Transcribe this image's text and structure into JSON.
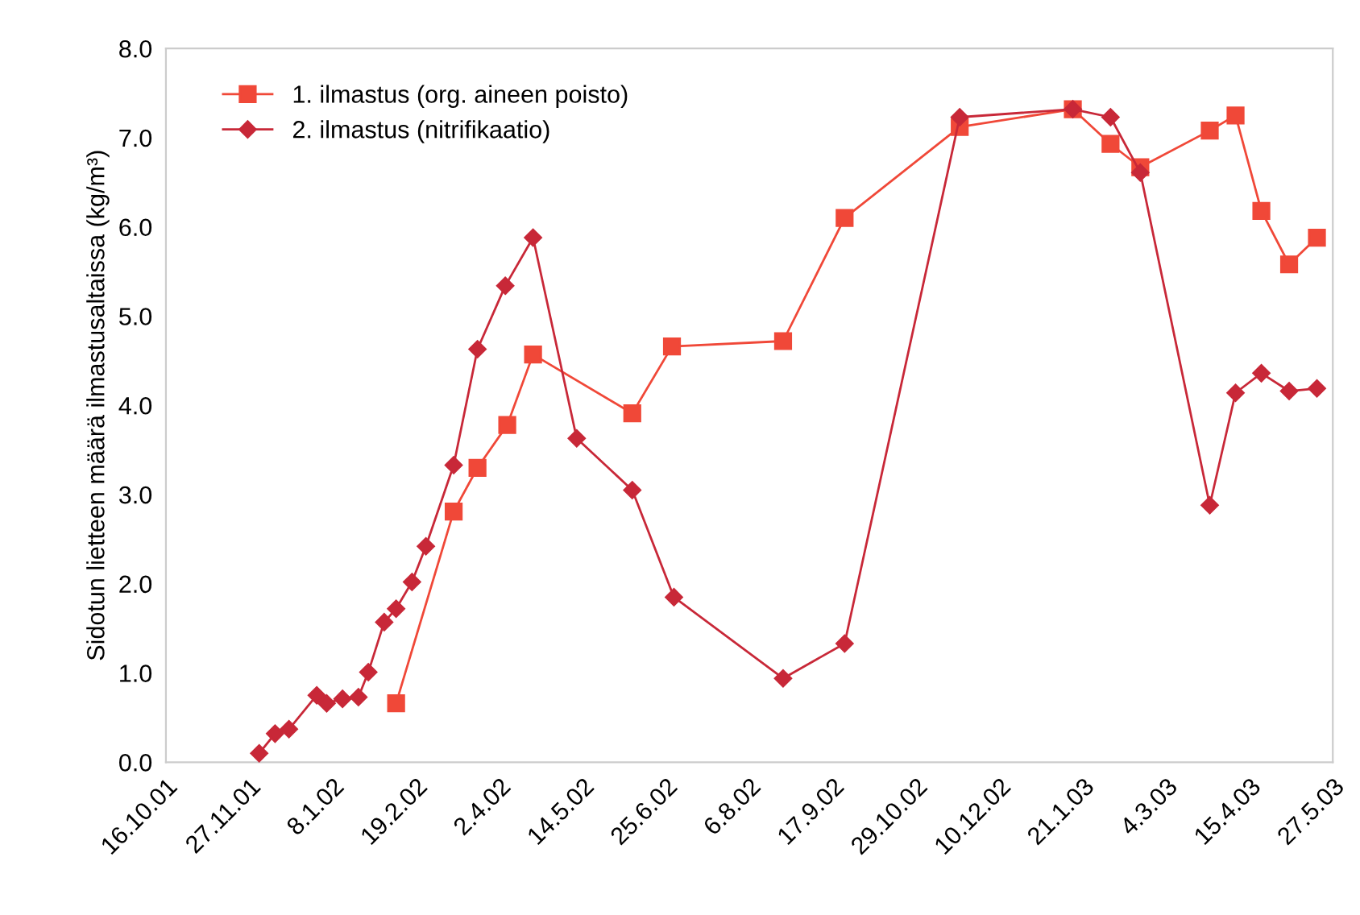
{
  "chart_data": {
    "type": "line",
    "ylabel": "Sidotun lietteen määrä ilmastusaltaissa (kg/m³)",
    "series": [
      {
        "name": "1. ilmastus (org. aineen poisto)",
        "color": "#f04838",
        "marker": "square",
        "x": [
          "2002-02-09",
          "2002-03-10",
          "2002-03-22",
          "2002-04-06",
          "2002-04-19",
          "2002-06-08",
          "2002-06-28",
          "2002-08-23",
          "2002-09-23",
          "2002-11-20",
          "2003-01-16",
          "2003-02-04",
          "2003-02-19",
          "2003-03-26",
          "2003-04-08",
          "2003-04-21",
          "2003-05-05",
          "2003-05-19"
        ],
        "values": [
          0.66,
          2.81,
          3.3,
          3.78,
          4.57,
          3.91,
          4.66,
          4.72,
          6.1,
          7.12,
          7.32,
          6.93,
          6.67,
          7.08,
          7.25,
          6.18,
          5.58,
          5.88
        ]
      },
      {
        "name": "2. ilmastus (nitrifikaatio)",
        "color": "#c82838",
        "marker": "diamond",
        "x": [
          "2001-12-02",
          "2001-12-10",
          "2001-12-17",
          "2001-12-31",
          "2002-01-05",
          "2002-01-13",
          "2002-01-21",
          "2002-01-26",
          "2002-02-03",
          "2002-02-09",
          "2002-02-17",
          "2002-02-24",
          "2002-03-10",
          "2002-03-22",
          "2002-04-05",
          "2002-04-19",
          "2002-05-11",
          "2002-06-08",
          "2002-06-29",
          "2002-08-23",
          "2002-09-23",
          "2002-11-20",
          "2003-01-16",
          "2003-02-04",
          "2003-02-19",
          "2003-03-26",
          "2003-04-08",
          "2003-04-21",
          "2003-05-05",
          "2003-05-19"
        ],
        "values": [
          0.1,
          0.32,
          0.37,
          0.75,
          0.66,
          0.71,
          0.73,
          1.01,
          1.57,
          1.72,
          2.02,
          2.42,
          3.33,
          4.63,
          5.34,
          5.88,
          3.63,
          3.05,
          1.85,
          0.94,
          1.33,
          7.23,
          7.32,
          7.23,
          6.61,
          2.88,
          4.14,
          4.36,
          4.16,
          4.19
        ]
      }
    ],
    "xlim": [
      "2001-10-16",
      "2003-05-27"
    ],
    "xticks": [
      {
        "value": "2001-10-16",
        "label": "16.10.01"
      },
      {
        "value": "2001-11-27",
        "label": "27.11.01"
      },
      {
        "value": "2002-01-08",
        "label": "8.1.02"
      },
      {
        "value": "2002-02-19",
        "label": "19.2.02"
      },
      {
        "value": "2002-04-02",
        "label": "2.4.02"
      },
      {
        "value": "2002-05-14",
        "label": "14.5.02"
      },
      {
        "value": "2002-06-25",
        "label": "25.6.02"
      },
      {
        "value": "2002-08-06",
        "label": "6.8.02"
      },
      {
        "value": "2002-09-17",
        "label": "17.9.02"
      },
      {
        "value": "2002-10-29",
        "label": "29.10.02"
      },
      {
        "value": "2002-12-10",
        "label": "10.12.02"
      },
      {
        "value": "2003-01-21",
        "label": "21.1.03"
      },
      {
        "value": "2003-03-04",
        "label": "4.3.03"
      },
      {
        "value": "2003-04-15",
        "label": "15.4.03"
      },
      {
        "value": "2003-05-27",
        "label": "27.5.03"
      }
    ],
    "ylim": [
      0,
      8
    ],
    "yticks": [
      {
        "value": 0,
        "label": "0.0"
      },
      {
        "value": 1,
        "label": "1.0"
      },
      {
        "value": 2,
        "label": "2.0"
      },
      {
        "value": 3,
        "label": "3.0"
      },
      {
        "value": 4,
        "label": "4.0"
      },
      {
        "value": 5,
        "label": "5.0"
      },
      {
        "value": 6,
        "label": "6.0"
      },
      {
        "value": 7,
        "label": "7.0"
      },
      {
        "value": 8,
        "label": "8.0"
      }
    ],
    "legend": "top left",
    "grid": false,
    "line_style": "solid"
  }
}
